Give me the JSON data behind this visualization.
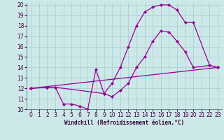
{
  "xlabel": "Windchill (Refroidissement éolien,°C)",
  "bg_color": "#cce8e8",
  "line_color": "#990099",
  "xlim": [
    -0.5,
    23.5
  ],
  "ylim": [
    10,
    20.2
  ],
  "xticks": [
    0,
    1,
    2,
    3,
    4,
    5,
    6,
    7,
    8,
    9,
    10,
    11,
    12,
    13,
    14,
    15,
    16,
    17,
    18,
    19,
    20,
    21,
    22,
    23
  ],
  "yticks": [
    10,
    11,
    12,
    13,
    14,
    15,
    16,
    17,
    18,
    19,
    20
  ],
  "series1_x": [
    0,
    2,
    3,
    4,
    5,
    6,
    7,
    8,
    9,
    10,
    11,
    12,
    13,
    14,
    15,
    16,
    17,
    18,
    19,
    20,
    22,
    23
  ],
  "series1_y": [
    12.0,
    12.1,
    12.1,
    10.5,
    10.5,
    10.3,
    10.0,
    13.8,
    11.5,
    11.2,
    11.8,
    12.5,
    14.0,
    15.0,
    16.5,
    17.5,
    17.4,
    16.5,
    15.5,
    14.0,
    14.2,
    14.0
  ],
  "series2_x": [
    0,
    2,
    3,
    9,
    10,
    11,
    12,
    13,
    14,
    15,
    16,
    17,
    18,
    19,
    20,
    22,
    23
  ],
  "series2_y": [
    12.0,
    12.1,
    12.1,
    11.5,
    12.5,
    14.0,
    16.0,
    18.0,
    19.3,
    19.8,
    20.0,
    20.0,
    19.5,
    18.3,
    18.3,
    14.2,
    14.0
  ],
  "series3_x": [
    0,
    23
  ],
  "series3_y": [
    12.0,
    14.0
  ],
  "grid_color": "#aacccc",
  "tick_fontsize": 5.5,
  "xlabel_fontsize": 5.5
}
